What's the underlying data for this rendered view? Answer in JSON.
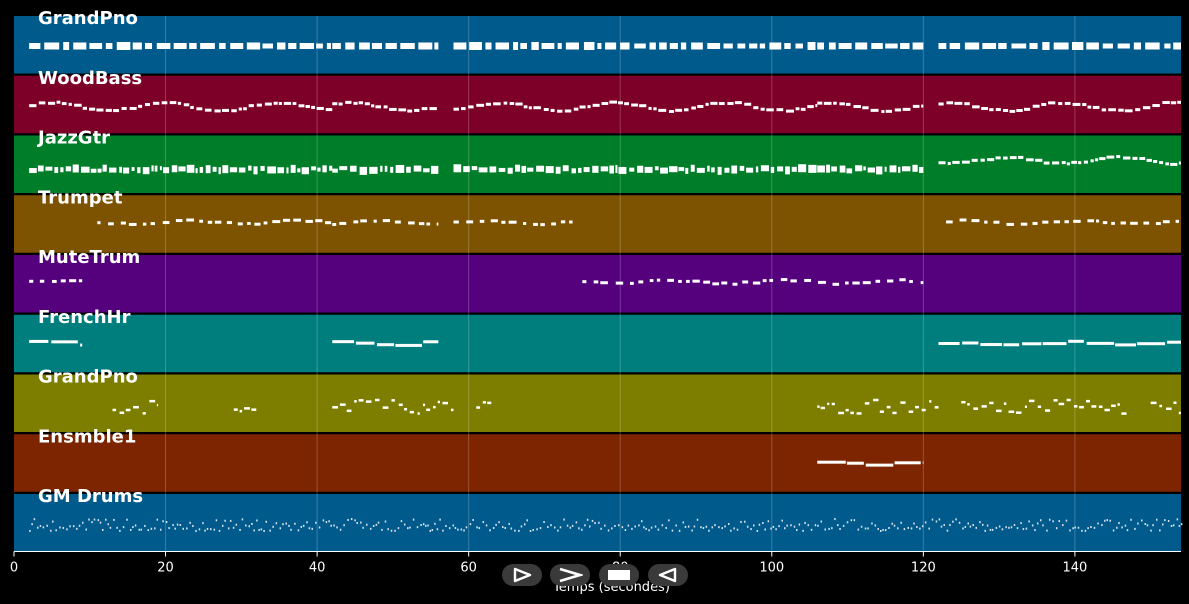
{
  "chart_data": {
    "type": "piano-roll",
    "xlabel": "Temps (secondes)",
    "xlim": [
      0,
      154
    ],
    "x_ticks": [
      0,
      20,
      40,
      60,
      80,
      100,
      120,
      140
    ],
    "grid": true,
    "tracks": [
      {
        "name": "GrandPno",
        "color": "#005a8c",
        "segments": [
          [
            2,
            42,
            "dense-chords"
          ],
          [
            42,
            56,
            "dense-chords"
          ],
          [
            58,
            106,
            "dense-chords"
          ],
          [
            106,
            120,
            "dense-chords"
          ],
          [
            122,
            154,
            "dense-chords"
          ]
        ]
      },
      {
        "name": "WoodBass",
        "color": "#7d0028",
        "segments": [
          [
            2,
            42,
            "walking"
          ],
          [
            42,
            56,
            "walking"
          ],
          [
            58,
            106,
            "walking"
          ],
          [
            106,
            120,
            "walking"
          ],
          [
            122,
            154,
            "walking"
          ]
        ]
      },
      {
        "name": "JazzGtr",
        "color": "#007d28",
        "segments": [
          [
            2,
            42,
            "comping"
          ],
          [
            42,
            56,
            "comping"
          ],
          [
            58,
            106,
            "comping"
          ],
          [
            106,
            120,
            "comping"
          ],
          [
            122,
            154,
            "wavy"
          ]
        ]
      },
      {
        "name": "Trumpet",
        "color": "#7d5200",
        "segments": [
          [
            11,
            42,
            "melody"
          ],
          [
            42,
            56,
            "melody"
          ],
          [
            58,
            74,
            "melody"
          ],
          [
            123,
            154,
            "melody"
          ]
        ]
      },
      {
        "name": "MuteTrum",
        "color": "#55007d",
        "segments": [
          [
            2,
            9,
            "melody"
          ],
          [
            75,
            120,
            "melody"
          ]
        ]
      },
      {
        "name": "FrenchHr",
        "color": "#007d7d",
        "segments": [
          [
            2,
            9,
            "long"
          ],
          [
            42,
            56,
            "long"
          ],
          [
            122,
            154,
            "long"
          ]
        ]
      },
      {
        "name": "GrandPno",
        "color": "#7d7d00",
        "segments": [
          [
            13,
            19,
            "fills"
          ],
          [
            29,
            32,
            "fills"
          ],
          [
            42,
            58,
            "fills"
          ],
          [
            61,
            63,
            "fills"
          ],
          [
            106,
            122,
            "fills"
          ],
          [
            125,
            147,
            "fills"
          ],
          [
            150,
            154,
            "fills"
          ]
        ]
      },
      {
        "name": "Ensmble1",
        "color": "#7d2400",
        "segments": [
          [
            106,
            120,
            "long"
          ]
        ]
      },
      {
        "name": "GM Drums",
        "color": "#005a8c",
        "segments": [
          [
            2,
            154,
            "drums"
          ]
        ]
      }
    ]
  },
  "controls": {
    "buttons": [
      {
        "name": "play",
        "icon": "play-outline-icon"
      },
      {
        "name": "forward",
        "icon": "chevron-right-icon"
      },
      {
        "name": "stop",
        "icon": "stop-icon"
      },
      {
        "name": "rewind",
        "icon": "play-reverse-outline-icon"
      }
    ]
  }
}
